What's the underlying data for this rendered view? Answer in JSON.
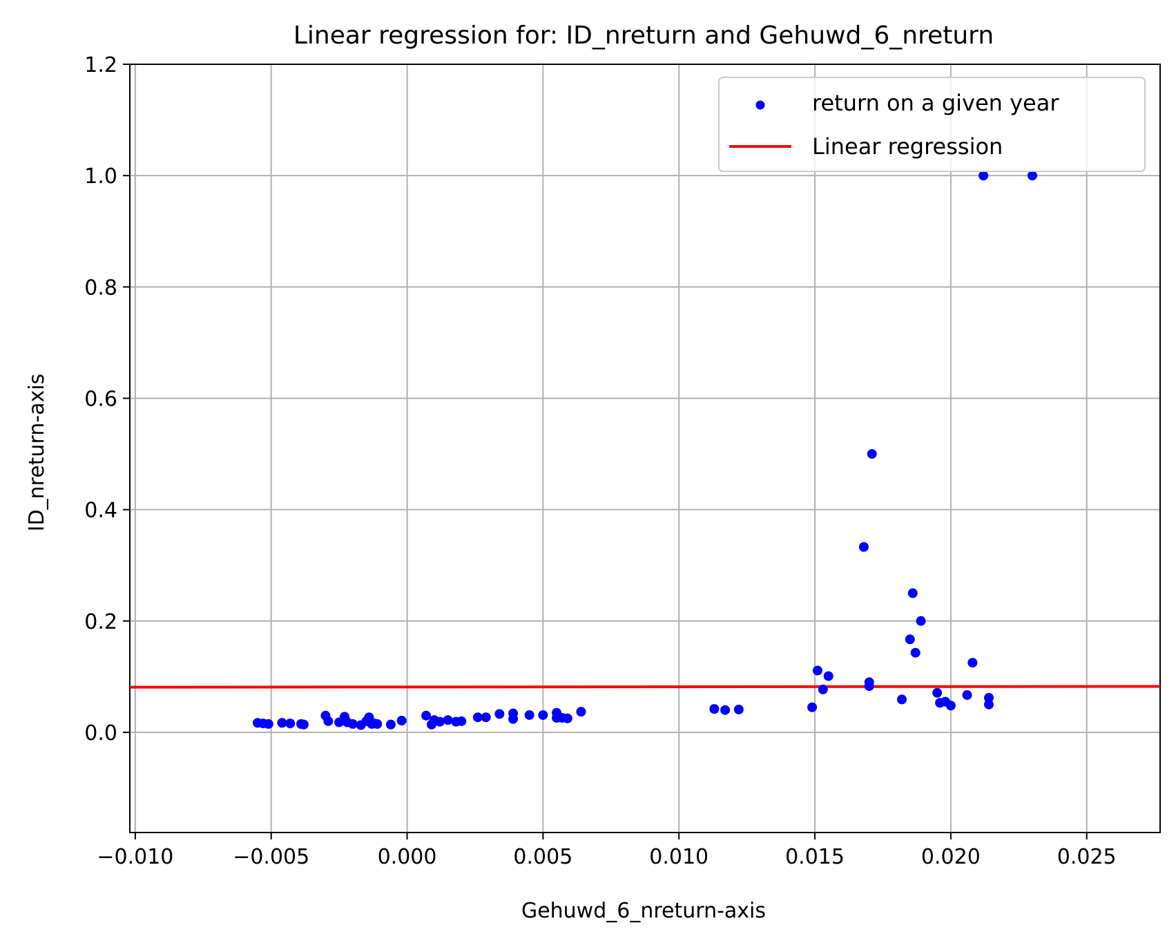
{
  "chart_data": {
    "type": "scatter",
    "title": "Linear regression for: ID_nreturn and Gehuwd_6_nreturn",
    "xlabel": "Gehuwd_6_nreturn-axis",
    "ylabel": "ID_nreturn-axis",
    "xlim": [
      -0.0102,
      0.0277
    ],
    "ylim": [
      -0.18,
      1.2
    ],
    "x_ticks": [
      "−0.010",
      "−0.005",
      "0.000",
      "0.005",
      "0.010",
      "0.015",
      "0.020",
      "0.025"
    ],
    "x_tick_values": [
      -0.01,
      -0.005,
      0.0,
      0.005,
      0.01,
      0.015,
      0.02,
      0.025
    ],
    "y_ticks": [
      "0.0",
      "0.2",
      "0.4",
      "0.6",
      "0.8",
      "1.0",
      "1.2"
    ],
    "y_tick_values": [
      0.0,
      0.2,
      0.4,
      0.6,
      0.8,
      1.0,
      1.2
    ],
    "grid": true,
    "legend_position": "top-right",
    "series": [
      {
        "name": "return on a given year",
        "kind": "scatter",
        "color": "#0000ff",
        "points": [
          [
            -0.0055,
            0.017
          ],
          [
            -0.0053,
            0.016
          ],
          [
            -0.0051,
            0.015
          ],
          [
            -0.0046,
            0.017
          ],
          [
            -0.0043,
            0.016
          ],
          [
            -0.0039,
            0.015
          ],
          [
            -0.0038,
            0.014
          ],
          [
            -0.003,
            0.03
          ],
          [
            -0.0029,
            0.02
          ],
          [
            -0.0025,
            0.018
          ],
          [
            -0.0023,
            0.028
          ],
          [
            -0.0022,
            0.018
          ],
          [
            -0.002,
            0.015
          ],
          [
            -0.0017,
            0.013
          ],
          [
            -0.0015,
            0.02
          ],
          [
            -0.0014,
            0.027
          ],
          [
            -0.0013,
            0.015
          ],
          [
            -0.0012,
            0.016
          ],
          [
            -0.0011,
            0.015
          ],
          [
            -0.0006,
            0.014
          ],
          [
            -0.0002,
            0.021
          ],
          [
            0.0007,
            0.03
          ],
          [
            0.0009,
            0.014
          ],
          [
            0.001,
            0.022
          ],
          [
            0.0012,
            0.019
          ],
          [
            0.0015,
            0.022
          ],
          [
            0.0018,
            0.019
          ],
          [
            0.002,
            0.02
          ],
          [
            0.0026,
            0.027
          ],
          [
            0.0029,
            0.027
          ],
          [
            0.0034,
            0.033
          ],
          [
            0.0039,
            0.034
          ],
          [
            0.0039,
            0.024
          ],
          [
            0.0045,
            0.031
          ],
          [
            0.005,
            0.031
          ],
          [
            0.0055,
            0.035
          ],
          [
            0.0055,
            0.026
          ],
          [
            0.0057,
            0.026
          ],
          [
            0.0059,
            0.025
          ],
          [
            0.0064,
            0.037
          ],
          [
            0.0113,
            0.042
          ],
          [
            0.0117,
            0.04
          ],
          [
            0.0122,
            0.041
          ],
          [
            0.0149,
            0.045
          ],
          [
            0.0151,
            0.111
          ],
          [
            0.0153,
            0.077
          ],
          [
            0.0155,
            0.101
          ],
          [
            0.0168,
            0.333
          ],
          [
            0.017,
            0.083
          ],
          [
            0.017,
            0.09
          ],
          [
            0.0171,
            0.5
          ],
          [
            0.0182,
            0.059
          ],
          [
            0.0185,
            0.167
          ],
          [
            0.0186,
            0.25
          ],
          [
            0.0187,
            0.143
          ],
          [
            0.0189,
            0.2
          ],
          [
            0.0195,
            0.071
          ],
          [
            0.0196,
            0.053
          ],
          [
            0.0198,
            0.055
          ],
          [
            0.02,
            0.048
          ],
          [
            0.0206,
            0.067
          ],
          [
            0.0208,
            0.125
          ],
          [
            0.0212,
            1.0
          ],
          [
            0.0214,
            0.062
          ],
          [
            0.0214,
            0.05
          ],
          [
            0.023,
            1.0
          ]
        ]
      },
      {
        "name": "Linear regression",
        "kind": "line",
        "color": "#ff0000",
        "points": [
          [
            -0.0102,
            0.081
          ],
          [
            0.0277,
            0.0825
          ]
        ]
      }
    ]
  }
}
